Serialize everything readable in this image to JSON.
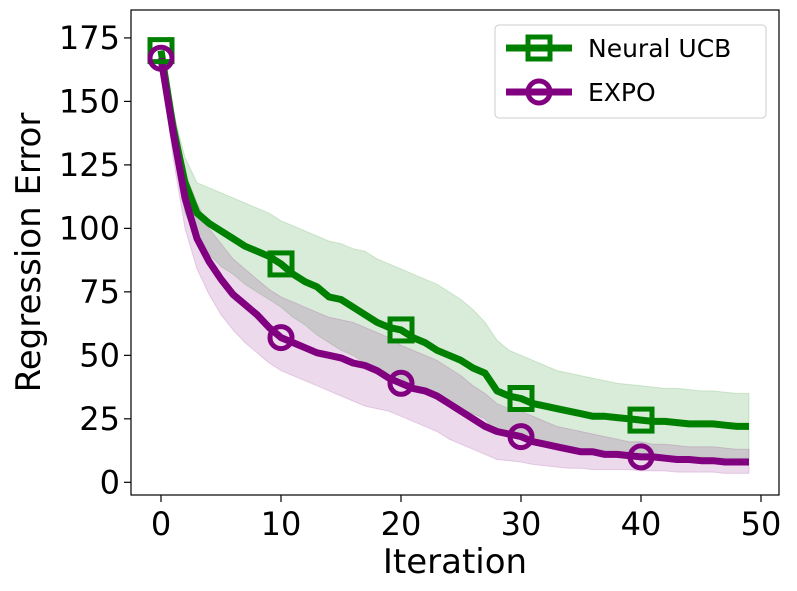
{
  "chart_data": {
    "type": "line",
    "title": "",
    "xlabel": "Iteration",
    "ylabel": "Regression Error",
    "xlim": [
      -2.5,
      51.5
    ],
    "ylim": [
      -5,
      186
    ],
    "xticks": [
      0,
      10,
      20,
      30,
      40,
      50
    ],
    "yticks": [
      0,
      25,
      50,
      75,
      100,
      125,
      150,
      175
    ],
    "grid": false,
    "legend_position": "top-right",
    "x": [
      0,
      1,
      2,
      3,
      4,
      5,
      6,
      7,
      8,
      9,
      10,
      11,
      12,
      13,
      14,
      15,
      16,
      17,
      18,
      19,
      20,
      21,
      22,
      23,
      24,
      25,
      26,
      27,
      28,
      29,
      30,
      31,
      32,
      33,
      34,
      35,
      36,
      37,
      38,
      39,
      40,
      41,
      42,
      43,
      44,
      45,
      46,
      47,
      48,
      49
    ],
    "marker_x": [
      0,
      10,
      20,
      30,
      40
    ],
    "series": [
      {
        "name": "Neural UCB",
        "color": "#008000",
        "marker": "square",
        "values": [
          170,
          140,
          118,
          106,
          102,
          99,
          96,
          93,
          91,
          89,
          86,
          82,
          79,
          77,
          73,
          72,
          69,
          66,
          63,
          61,
          60,
          57,
          55,
          52,
          50,
          48,
          45,
          43,
          36,
          34,
          33,
          31,
          30,
          29,
          28,
          27,
          26,
          26,
          25.5,
          25,
          24.5,
          24,
          24,
          23.5,
          23,
          23,
          23,
          22.5,
          22,
          22
        ],
        "upper": [
          172,
          146,
          128,
          118,
          116,
          114,
          112,
          110,
          108,
          106,
          103,
          101,
          99,
          97,
          95,
          94,
          92,
          91,
          88,
          86,
          84,
          82,
          80,
          78,
          75,
          72,
          68,
          63,
          56,
          52,
          50,
          48,
          46,
          44,
          43,
          42,
          41,
          40,
          39,
          38.5,
          38,
          37.5,
          37,
          37,
          36.5,
          36,
          36,
          35.5,
          35,
          35
        ],
        "lower": [
          168,
          132,
          106,
          96,
          90,
          85,
          82,
          78,
          75,
          72,
          69,
          65,
          62,
          58,
          55,
          52,
          50,
          47,
          45,
          43,
          41,
          38,
          36,
          33,
          31,
          29,
          27,
          25,
          19,
          18,
          17,
          16,
          15,
          14,
          13.5,
          13,
          12.5,
          12,
          11.5,
          11,
          11,
          10.5,
          10,
          10,
          10,
          10,
          9.5,
          9.5,
          9.5,
          9.5
        ]
      },
      {
        "name": "EXPO",
        "color": "#800080",
        "marker": "circle",
        "values": [
          167,
          138,
          112,
          96,
          87,
          80,
          74,
          70,
          66,
          61,
          57,
          55,
          53,
          51,
          50,
          49,
          47,
          46,
          44,
          41,
          39,
          37,
          36,
          34,
          31,
          28,
          25,
          22,
          20,
          19,
          18,
          16,
          15,
          14,
          13,
          12,
          12,
          11,
          11,
          10.5,
          10,
          10,
          9.5,
          9,
          9,
          8.5,
          8.5,
          8,
          8,
          8
        ],
        "upper": [
          169,
          148,
          122,
          110,
          100,
          94,
          88,
          84,
          80,
          76,
          73,
          71,
          69,
          67,
          65,
          64,
          63,
          61,
          59,
          57,
          54,
          52,
          50,
          48,
          45,
          42,
          38,
          35,
          31,
          29,
          28,
          26,
          24,
          22,
          21,
          20,
          19,
          18,
          17,
          16,
          16,
          15,
          15,
          14.5,
          14,
          14,
          14,
          13.5,
          13,
          13
        ],
        "lower": [
          165,
          128,
          100,
          84,
          74,
          66,
          60,
          55,
          51,
          47,
          44,
          42,
          40,
          38,
          36,
          34,
          32,
          30,
          29,
          28,
          26,
          24,
          22,
          20,
          17,
          15,
          13,
          11,
          9,
          8.5,
          8,
          7,
          6.5,
          6,
          5.5,
          5.5,
          5,
          5,
          5,
          5,
          4.5,
          4.5,
          4.5,
          4,
          4,
          4,
          4,
          3.5,
          3.5,
          3.5
        ]
      }
    ]
  }
}
